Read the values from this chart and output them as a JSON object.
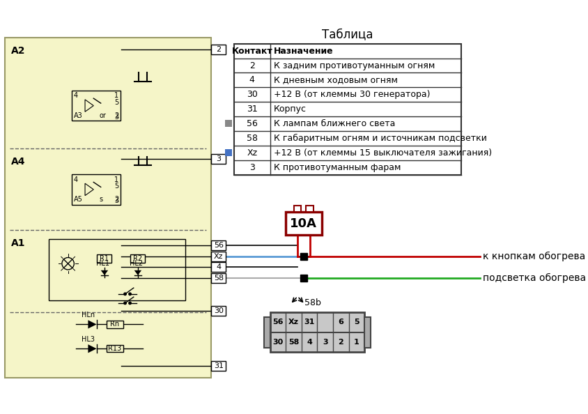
{
  "title": "Таблица",
  "bg_color": "#f5f5c8",
  "table_headers": [
    "Контакт",
    "Назначение"
  ],
  "table_rows": [
    [
      "2",
      "К задним противотуманным огням"
    ],
    [
      "4",
      "К дневным ходовым огням"
    ],
    [
      "30",
      "+12 В (от клеммы 30 генератора)"
    ],
    [
      "31",
      "Корпус"
    ],
    [
      "56",
      "К лампам ближнего света"
    ],
    [
      "58",
      "К габаритным огням и источникам подсветки"
    ],
    [
      "Xz",
      "+12 В (от клеммы 15 выключателя зажигания)"
    ],
    [
      "3",
      "К противотуманным фарам"
    ]
  ],
  "marker_56_color": "#888888",
  "marker_xz_color": "#4472c4",
  "label_text_red": "к кнопкам обогрева",
  "label_text_green": "подсветка обогрева",
  "fuse_label": "10А",
  "connector_label": "58b",
  "connector_top_row": [
    "56",
    "Xz",
    "31",
    "",
    "6",
    "5"
  ],
  "connector_bot_row": [
    "30",
    "58",
    "4",
    "3",
    "2",
    "1"
  ],
  "A2_label": "A2",
  "A4_label": "A4",
  "A1_label": "A1"
}
